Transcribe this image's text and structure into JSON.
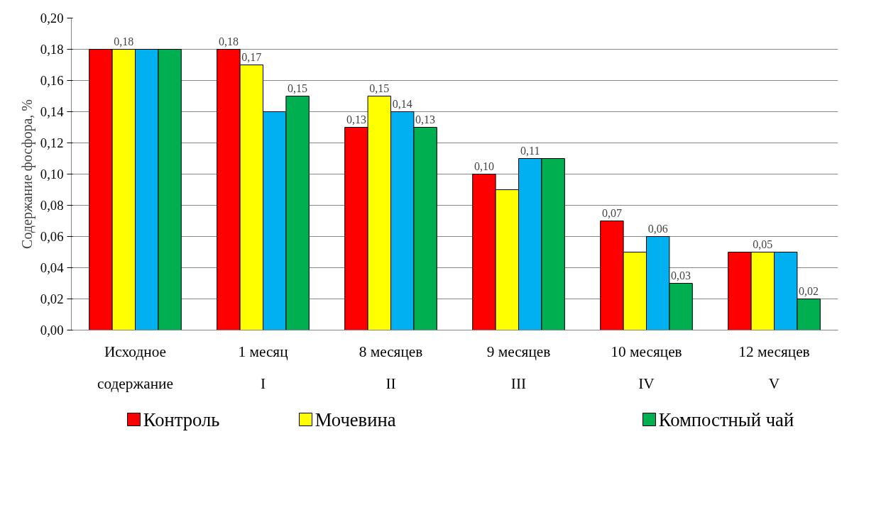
{
  "chart_data": {
    "type": "bar",
    "ylabel": "Содержание фосфора, %",
    "categories": [
      "Исходное\nсодержание",
      "1 месяц\nI",
      "8 месяцев\nII",
      "9 месяцев\nIII",
      "10 месяцев\nIV",
      "12 месяцев\nV"
    ],
    "series": [
      {
        "name": "Контроль",
        "color": "#ff0000",
        "values": [
          0.18,
          0.18,
          0.13,
          0.1,
          0.07,
          0.05
        ],
        "value_labels": [
          null,
          "0,18",
          "0,13",
          "0,10",
          "0,07",
          null
        ]
      },
      {
        "name": "Мочевина",
        "color": "#ffff00",
        "values": [
          0.18,
          0.17,
          0.15,
          0.09,
          0.05,
          0.05
        ],
        "value_labels": [
          "0,18",
          "0,17",
          "0,15",
          null,
          null,
          "0,05"
        ]
      },
      {
        "color": "#00b0f0",
        "values": [
          0.18,
          0.14,
          0.14,
          0.11,
          0.06,
          0.05
        ],
        "value_labels": [
          null,
          null,
          "0,14",
          "0,11",
          "0,06",
          null
        ]
      },
      {
        "name": "Компостный чай",
        "color": "#00b050",
        "values": [
          0.18,
          0.15,
          0.13,
          0.11,
          0.03,
          0.02
        ],
        "value_labels": [
          null,
          "0,15",
          "0,13",
          null,
          "0,03",
          "0,02"
        ]
      }
    ],
    "ylim": [
      0,
      0.2
    ],
    "yticks": [
      {
        "value": 0,
        "label": "0,00"
      },
      {
        "value": 0.02,
        "label": "0,02"
      },
      {
        "value": 0.04,
        "label": "0,04"
      },
      {
        "value": 0.06,
        "label": "0,06"
      },
      {
        "value": 0.08,
        "label": "0,08"
      },
      {
        "value": 0.1,
        "label": "0,10"
      },
      {
        "value": 0.12,
        "label": "0,12"
      },
      {
        "value": 0.14,
        "label": "0,14"
      },
      {
        "value": 0.16,
        "label": "0,16"
      },
      {
        "value": 0.18,
        "label": "0,18"
      },
      {
        "value": 0.2,
        "label": "0,20"
      }
    ],
    "grid": "y",
    "legend": "bottom"
  }
}
